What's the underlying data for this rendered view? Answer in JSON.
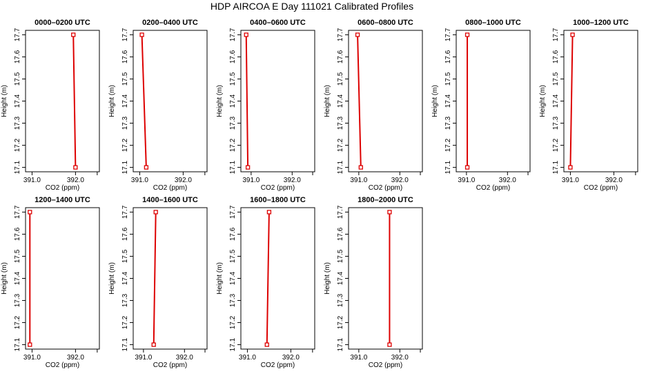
{
  "page": {
    "title": "HDP AIRCOA E  Day 111021  Calibrated Profiles"
  },
  "colors": {
    "series": "#dd0000",
    "axes": "#000000"
  },
  "chart_data": [
    {
      "type": "line",
      "title": "0000–0200 UTC",
      "xlabel": "CO2 (ppm)",
      "ylabel": "Height (m)",
      "xlim": [
        390.85,
        392.55
      ],
      "ylim": [
        17.08,
        17.72
      ],
      "x": [
        391.95,
        392.0
      ],
      "y": [
        17.7,
        17.1
      ],
      "xticks": [
        391.0,
        392.0
      ],
      "yticks": [
        17.1,
        17.2,
        17.3,
        17.4,
        17.5,
        17.6,
        17.7
      ]
    },
    {
      "type": "line",
      "title": "0200–0400 UTC",
      "xlabel": "CO2 (ppm)",
      "ylabel": "Height (m)",
      "xlim": [
        390.85,
        392.55
      ],
      "ylim": [
        17.08,
        17.72
      ],
      "x": [
        391.05,
        391.15
      ],
      "y": [
        17.7,
        17.1
      ],
      "xticks": [
        391.0,
        392.0
      ],
      "yticks": [
        17.1,
        17.2,
        17.3,
        17.4,
        17.5,
        17.6,
        17.7
      ]
    },
    {
      "type": "line",
      "title": "0400–0600 UTC",
      "xlabel": "CO2 (ppm)",
      "ylabel": "Height (m)",
      "xlim": [
        390.75,
        392.55
      ],
      "ylim": [
        17.08,
        17.72
      ],
      "x": [
        390.88,
        390.92
      ],
      "y": [
        17.7,
        17.1
      ],
      "xticks": [
        391.0,
        392.0
      ],
      "yticks": [
        17.1,
        17.2,
        17.3,
        17.4,
        17.5,
        17.6,
        17.7
      ]
    },
    {
      "type": "line",
      "title": "0600–0800 UTC",
      "xlabel": "CO2 (ppm)",
      "ylabel": "Height (m)",
      "xlim": [
        390.75,
        392.55
      ],
      "ylim": [
        17.08,
        17.72
      ],
      "x": [
        390.97,
        391.05
      ],
      "y": [
        17.7,
        17.1
      ],
      "xticks": [
        391.0,
        392.0
      ],
      "yticks": [
        17.1,
        17.2,
        17.3,
        17.4,
        17.5,
        17.6,
        17.7
      ]
    },
    {
      "type": "line",
      "title": "0800–1000 UTC",
      "xlabel": "CO2 (ppm)",
      "ylabel": "Height (m)",
      "xlim": [
        390.75,
        392.55
      ],
      "ylim": [
        17.08,
        17.72
      ],
      "x": [
        391.02,
        391.02
      ],
      "y": [
        17.7,
        17.1
      ],
      "xticks": [
        391.0,
        392.0
      ],
      "yticks": [
        17.1,
        17.2,
        17.3,
        17.4,
        17.5,
        17.6,
        17.7
      ]
    },
    {
      "type": "line",
      "title": "1000–1200 UTC",
      "xlabel": "CO2 (ppm)",
      "ylabel": "Height (m)",
      "xlim": [
        390.85,
        392.55
      ],
      "ylim": [
        17.08,
        17.72
      ],
      "x": [
        391.05,
        391.0
      ],
      "y": [
        17.7,
        17.1
      ],
      "xticks": [
        391.0,
        392.0
      ],
      "yticks": [
        17.1,
        17.2,
        17.3,
        17.4,
        17.5,
        17.6,
        17.7
      ]
    },
    {
      "type": "line",
      "title": "1200–1400 UTC",
      "xlabel": "CO2 (ppm)",
      "ylabel": "Height (m)",
      "xlim": [
        390.85,
        392.55
      ],
      "ylim": [
        17.08,
        17.72
      ],
      "x": [
        390.95,
        390.95
      ],
      "y": [
        17.7,
        17.1
      ],
      "xticks": [
        391.0,
        392.0
      ],
      "yticks": [
        17.1,
        17.2,
        17.3,
        17.4,
        17.5,
        17.6,
        17.7
      ]
    },
    {
      "type": "line",
      "title": "1400–1600 UTC",
      "xlabel": "CO2 (ppm)",
      "ylabel": "Height (m)",
      "xlim": [
        390.75,
        392.55
      ],
      "ylim": [
        17.08,
        17.72
      ],
      "x": [
        391.3,
        391.25
      ],
      "y": [
        17.7,
        17.1
      ],
      "xticks": [
        391.0,
        392.0
      ],
      "yticks": [
        17.1,
        17.2,
        17.3,
        17.4,
        17.5,
        17.6,
        17.7
      ]
    },
    {
      "type": "line",
      "title": "1600–1800 UTC",
      "xlabel": "CO2 (ppm)",
      "ylabel": "Height (m)",
      "xlim": [
        390.85,
        392.55
      ],
      "ylim": [
        17.08,
        17.72
      ],
      "x": [
        391.5,
        391.45
      ],
      "y": [
        17.7,
        17.1
      ],
      "xticks": [
        391.0,
        392.0
      ],
      "yticks": [
        17.1,
        17.2,
        17.3,
        17.4,
        17.5,
        17.6,
        17.7
      ]
    },
    {
      "type": "line",
      "title": "1800–2000 UTC",
      "xlabel": "CO2 (ppm)",
      "ylabel": "Height (m)",
      "xlim": [
        390.75,
        392.55
      ],
      "ylim": [
        17.08,
        17.72
      ],
      "x": [
        391.75,
        391.75
      ],
      "y": [
        17.7,
        17.1
      ],
      "xticks": [
        391.0,
        392.0
      ],
      "yticks": [
        17.1,
        17.2,
        17.3,
        17.4,
        17.5,
        17.6,
        17.7
      ]
    }
  ]
}
